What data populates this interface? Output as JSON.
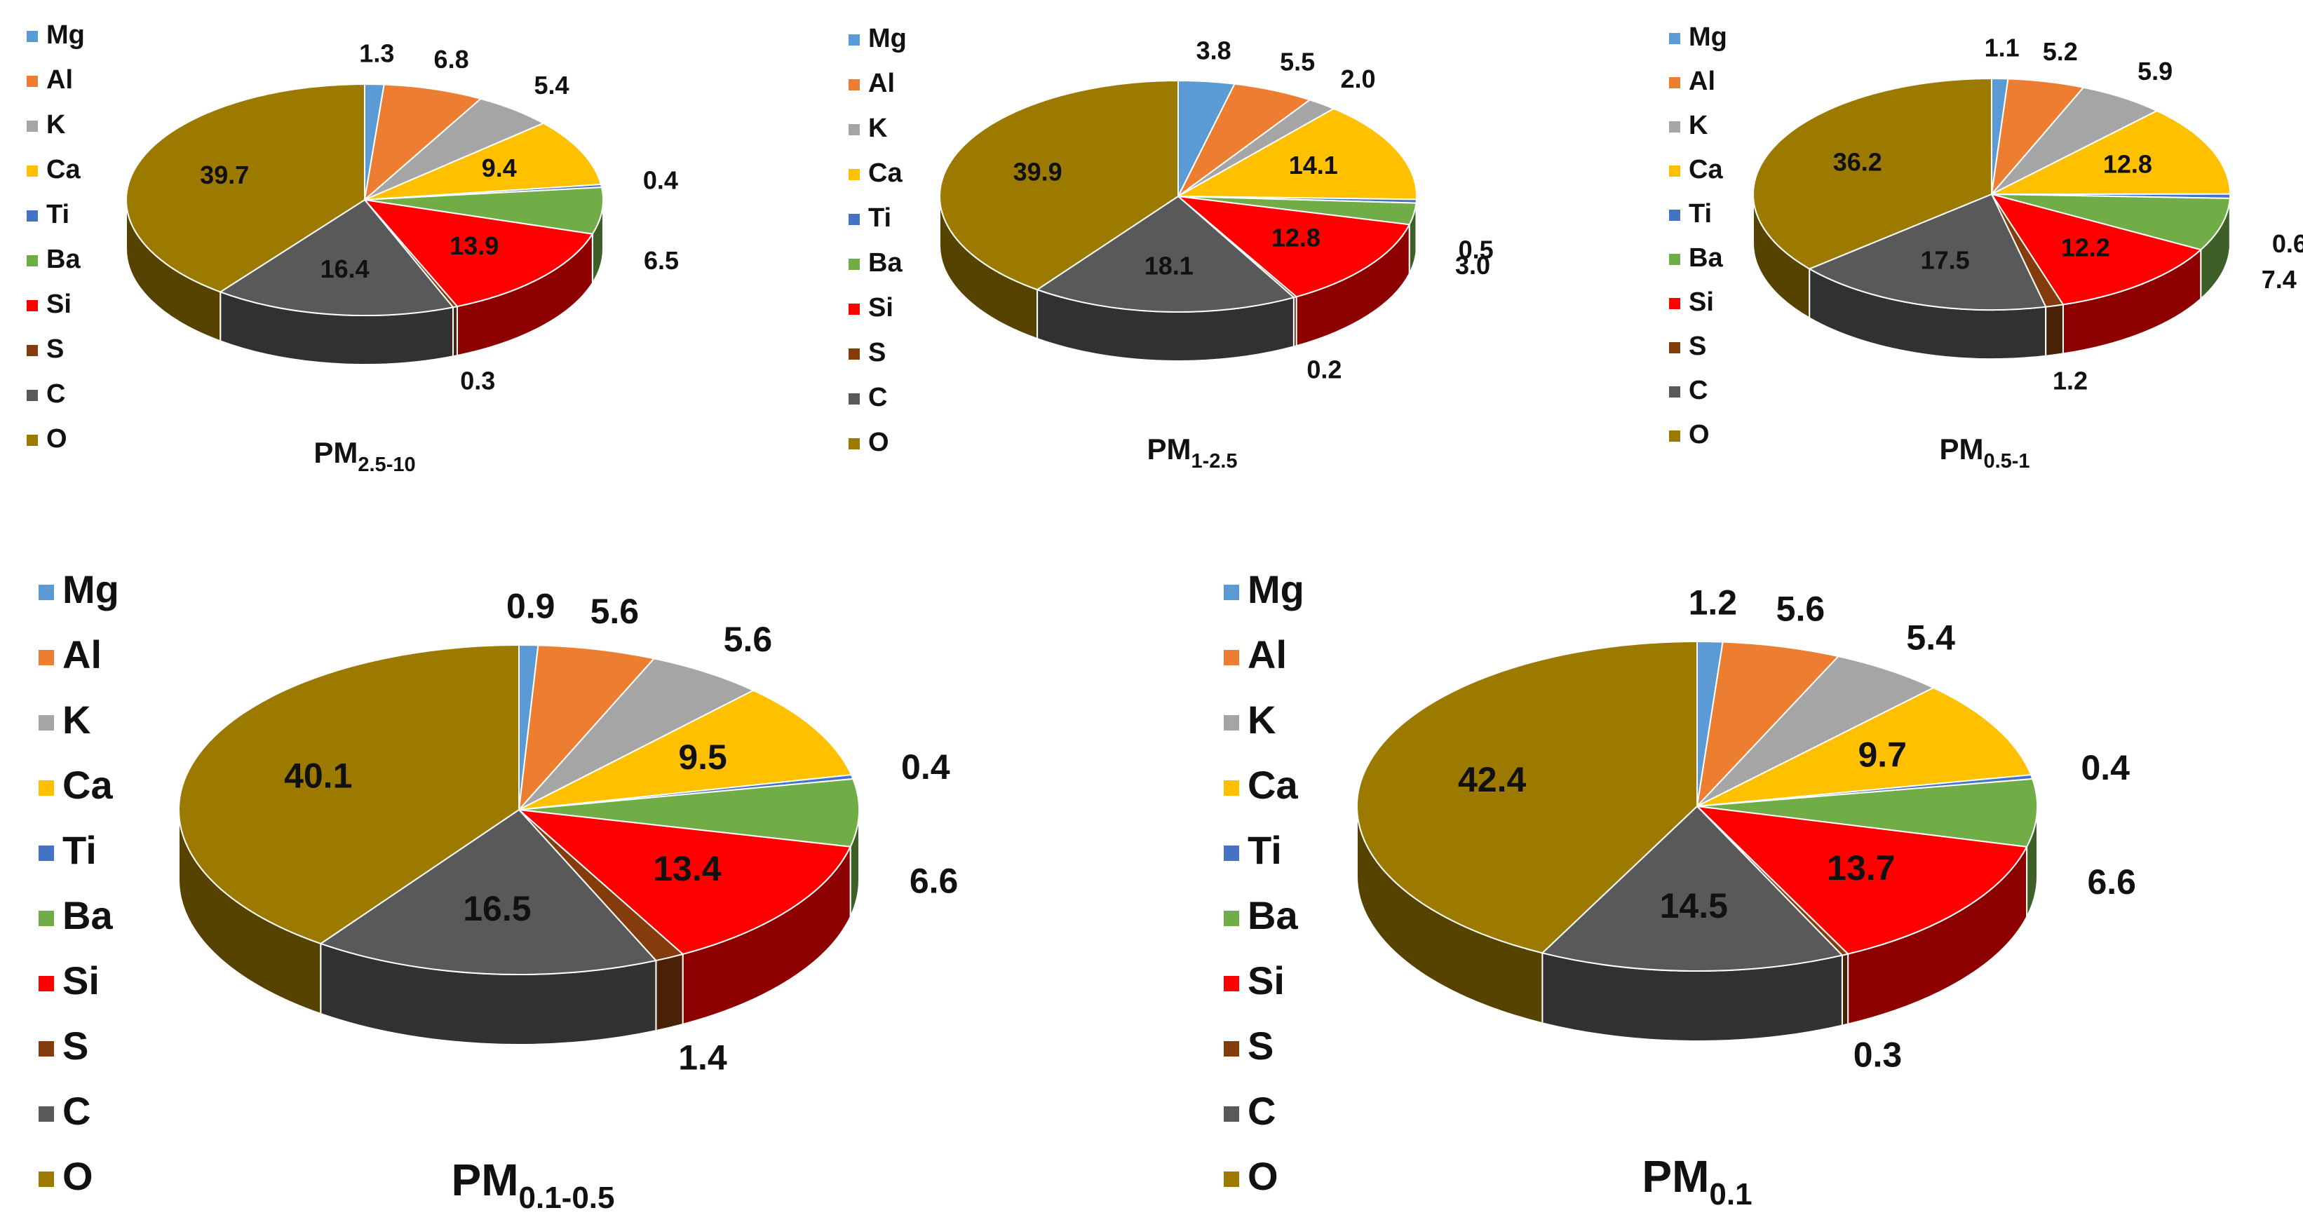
{
  "chart_data": [
    {
      "type": "pie",
      "title": "PM",
      "title_sub": "2.5-10",
      "legend": [
        "Mg",
        "Al",
        "K",
        "Ca",
        "Ti",
        "Ba",
        "Si",
        "S",
        "C",
        "O"
      ],
      "colors": [
        "#5B9BD5",
        "#ED7D31",
        "#A5A5A5",
        "#FFC000",
        "#4472C4",
        "#70AD47",
        "#FF0000",
        "#843C0C",
        "#595959",
        "#9C7A00"
      ],
      "values": [
        1.3,
        6.8,
        5.4,
        9.4,
        0.4,
        6.5,
        13.9,
        0.3,
        16.4,
        39.7
      ],
      "labels": [
        "1.3",
        "6.8",
        "5.4",
        "9.4",
        "0.4",
        "6.5",
        "13.9",
        "0.3",
        "16.4",
        "39.7"
      ]
    },
    {
      "type": "pie",
      "title": "PM",
      "title_sub": "1-2.5",
      "legend": [
        "Mg",
        "Al",
        "K",
        "Ca",
        "Ti",
        "Ba",
        "Si",
        "S",
        "C",
        "O"
      ],
      "colors": [
        "#5B9BD5",
        "#ED7D31",
        "#A5A5A5",
        "#FFC000",
        "#4472C4",
        "#70AD47",
        "#FF0000",
        "#843C0C",
        "#595959",
        "#9C7A00"
      ],
      "values": [
        3.8,
        5.5,
        2.0,
        14.1,
        0.5,
        3.0,
        12.8,
        0.2,
        18.1,
        39.9
      ],
      "labels": [
        "3.8",
        "5.5",
        "2.0",
        "14.1",
        "0.5",
        "3.0",
        "12.8",
        "0.2",
        "18.1",
        "39.9"
      ]
    },
    {
      "type": "pie",
      "title": "PM",
      "title_sub": "0.5-1",
      "legend": [
        "Mg",
        "Al",
        "K",
        "Ca",
        "Ti",
        "Ba",
        "Si",
        "S",
        "C",
        "O"
      ],
      "colors": [
        "#5B9BD5",
        "#ED7D31",
        "#A5A5A5",
        "#FFC000",
        "#4472C4",
        "#70AD47",
        "#FF0000",
        "#843C0C",
        "#595959",
        "#9C7A00"
      ],
      "values": [
        1.1,
        5.2,
        5.9,
        12.8,
        0.6,
        7.4,
        12.2,
        1.2,
        17.5,
        36.2
      ],
      "labels": [
        "1.1",
        "5.2",
        "5.9",
        "12.8",
        "0.6",
        "7.4",
        "12.2",
        "1.2",
        "17.5",
        "36.2"
      ]
    },
    {
      "type": "pie",
      "title": "PM",
      "title_sub": "0.1-0.5",
      "legend": [
        "Mg",
        "Al",
        "K",
        "Ca",
        "Ti",
        "Ba",
        "Si",
        "S",
        "C",
        "O"
      ],
      "colors": [
        "#5B9BD5",
        "#ED7D31",
        "#A5A5A5",
        "#FFC000",
        "#4472C4",
        "#70AD47",
        "#FF0000",
        "#843C0C",
        "#595959",
        "#9C7A00"
      ],
      "values": [
        0.9,
        5.6,
        5.6,
        9.5,
        0.4,
        6.6,
        13.4,
        1.4,
        16.5,
        40.1
      ],
      "labels": [
        "0.9",
        "5.6",
        "5.6",
        "9.5",
        "0.4",
        "6.6",
        "13.4",
        "1.4",
        "16.5",
        "40.1"
      ]
    },
    {
      "type": "pie",
      "title": "PM",
      "title_sub": "0.1",
      "legend": [
        "Mg",
        "Al",
        "K",
        "Ca",
        "Ti",
        "Ba",
        "Si",
        "S",
        "C",
        "O"
      ],
      "colors": [
        "#5B9BD5",
        "#ED7D31",
        "#A5A5A5",
        "#FFC000",
        "#4472C4",
        "#70AD47",
        "#FF0000",
        "#843C0C",
        "#595959",
        "#9C7A00"
      ],
      "values": [
        1.2,
        5.6,
        5.4,
        9.7,
        0.4,
        6.6,
        13.7,
        0.3,
        14.5,
        42.4
      ],
      "labels": [
        "1.2",
        "5.6",
        "5.4",
        "9.7",
        "0.4",
        "6.6",
        "13.7",
        "0.3",
        "14.5",
        "42.4"
      ]
    }
  ]
}
